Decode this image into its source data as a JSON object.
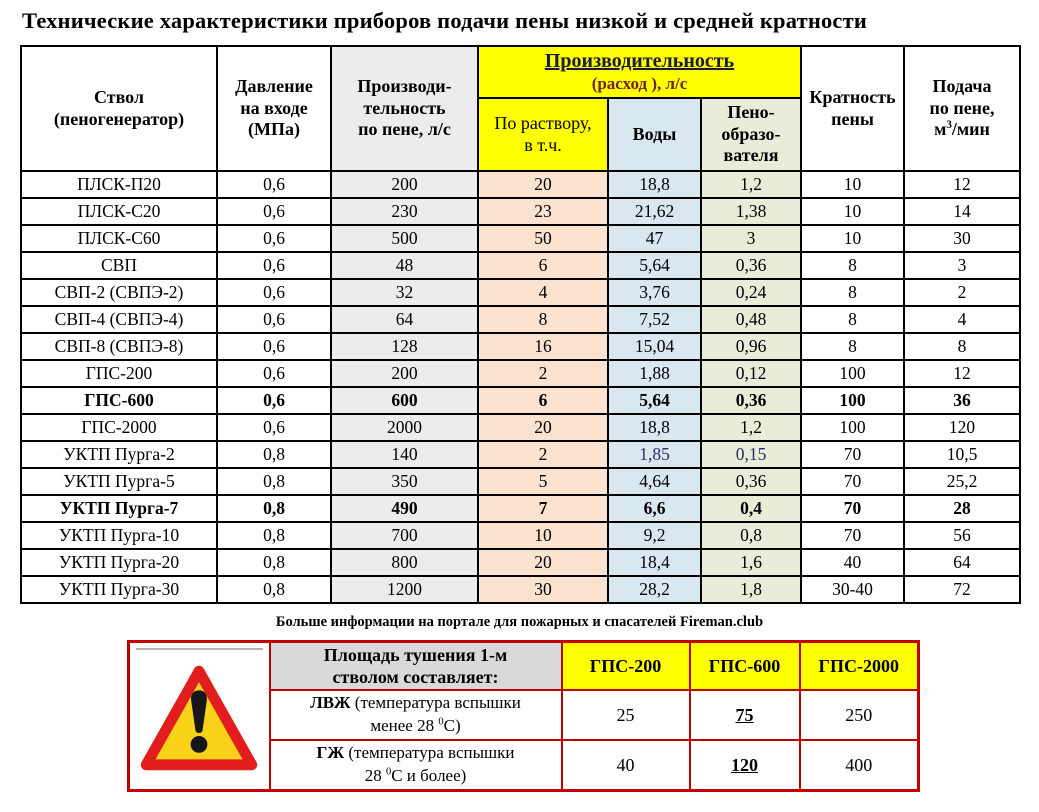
{
  "colors": {
    "yellow": "#ffff00",
    "gray_col": "#ececec",
    "peach_col": "#fbe3d0",
    "blue_col": "#d9e7f1",
    "green_col": "#e8edd9",
    "header_gray": "#d9d9d9",
    "red_border": "#c00000",
    "navy_text": "#2d2d66",
    "navy_title": "#181d3f",
    "dark_red_text": "#6f221b",
    "triangle_yellow": "#f7d219",
    "triangle_red": "#e11d1d"
  },
  "title": "Технические характеристики приборов подачи пены низкой и средней кратности",
  "main_table": {
    "header": {
      "stvol": {
        "line1": "Ствол",
        "line2": "(пеногенератор)"
      },
      "pressure": {
        "line1": "Давление",
        "line2": "на входе",
        "line3": "(МПа)"
      },
      "foam_capacity": {
        "line1": "Производи-",
        "line2": "тельность",
        "line3": "по пене, л/с"
      },
      "performance_group": {
        "title": "Производительность",
        "subtitle": "(расход ), л/с"
      },
      "solution": {
        "line1": "По раствору,",
        "line2": "в т.ч."
      },
      "water": "Воды",
      "foaming_agent": {
        "line1": "Пено-",
        "line2": "образо-",
        "line3": "вателя"
      },
      "ratio": {
        "line1": "Кратность",
        "line2": "пены"
      },
      "supply": {
        "line1": "Подача",
        "line2": "по пене,",
        "line3_base": "м",
        "line3_sup": "3",
        "line3_rest": "/мин"
      }
    },
    "rows": [
      {
        "name": "ПЛСК-П20",
        "pressure": "0,6",
        "foam_capacity": "200",
        "solution": "20",
        "water": "18,8",
        "foaming_agent": "1,2",
        "ratio": "10",
        "supply": "12"
      },
      {
        "name": "ПЛСК-С20",
        "pressure": "0,6",
        "foam_capacity": "230",
        "solution": "23",
        "water": "21,62",
        "foaming_agent": "1,38",
        "ratio": "10",
        "supply": "14"
      },
      {
        "name": "ПЛСК-С60",
        "pressure": "0,6",
        "foam_capacity": "500",
        "solution": "50",
        "water": "47",
        "foaming_agent": "3",
        "ratio": "10",
        "supply": "30"
      },
      {
        "name": "СВП",
        "pressure": "0,6",
        "foam_capacity": "48",
        "solution": "6",
        "water": "5,64",
        "foaming_agent": "0,36",
        "ratio": "8",
        "supply": "3"
      },
      {
        "name": "СВП-2 (СВПЭ-2)",
        "pressure": "0,6",
        "foam_capacity": "32",
        "solution": "4",
        "water": "3,76",
        "foaming_agent": "0,24",
        "ratio": "8",
        "supply": "2"
      },
      {
        "name": "СВП-4 (СВПЭ-4)",
        "pressure": "0,6",
        "foam_capacity": "64",
        "solution": "8",
        "water": "7,52",
        "foaming_agent": "0,48",
        "ratio": "8",
        "supply": "4"
      },
      {
        "name": "СВП-8 (СВПЭ-8)",
        "pressure": "0,6",
        "foam_capacity": "128",
        "solution": "16",
        "water": "15,04",
        "foaming_agent": "0,96",
        "ratio": "8",
        "supply": "8"
      },
      {
        "name": "ГПС-200",
        "pressure": "0,6",
        "foam_capacity": "200",
        "solution": "2",
        "water": "1,88",
        "foaming_agent": "0,12",
        "ratio": "100",
        "supply": "12"
      },
      {
        "name": "ГПС-600",
        "bold": true,
        "pressure": "0,6",
        "foam_capacity": "600",
        "solution": "6",
        "water": "5,64",
        "foaming_agent": "0,36",
        "ratio": "100",
        "supply": "36"
      },
      {
        "name": "ГПС-2000",
        "pressure": "0,6",
        "foam_capacity": "2000",
        "solution": "20",
        "water": "18,8",
        "foaming_agent": "1,2",
        "ratio": "100",
        "supply": "120"
      },
      {
        "name": "УКТП Пурга-2",
        "pressure": "0,8",
        "foam_capacity": "140",
        "solution": "2",
        "water": "1,85",
        "foaming_agent": "0,15",
        "ratio": "70",
        "supply": "10,5",
        "accent": [
          "water",
          "foaming_agent"
        ]
      },
      {
        "name": "УКТП Пурга-5",
        "pressure": "0,8",
        "foam_capacity": "350",
        "solution": "5",
        "water": "4,64",
        "foaming_agent": "0,36",
        "ratio": "70",
        "supply": "25,2"
      },
      {
        "name": "УКТП Пурга-7",
        "bold": true,
        "pressure": "0,8",
        "foam_capacity": "490",
        "solution": "7",
        "water": "6,6",
        "foaming_agent": "0,4",
        "ratio": "70",
        "supply": "28"
      },
      {
        "name": "УКТП Пурга-10",
        "pressure": "0,8",
        "foam_capacity": "700",
        "solution": "10",
        "water": "9,2",
        "foaming_agent": "0,8",
        "ratio": "70",
        "supply": "56"
      },
      {
        "name": "УКТП Пурга-20",
        "pressure": "0,8",
        "foam_capacity": "800",
        "solution": "20",
        "water": "18,4",
        "foaming_agent": "1,6",
        "ratio": "40",
        "supply": "64"
      },
      {
        "name": "УКТП Пурга-30",
        "pressure": "0,8",
        "foam_capacity": "1200",
        "solution": "30",
        "water": "28,2",
        "foaming_agent": "1,8",
        "ratio": "30-40",
        "supply": "72"
      }
    ]
  },
  "footer_note": "Больше информации на портале для пожарных и спасателей Fireman.club",
  "bottom_table": {
    "header": {
      "label_line1": "Площадь тушения 1-м",
      "label_line2": "стволом составляет:",
      "columns": [
        "ГПС-200",
        "ГПС-600",
        "ГПС-2000"
      ]
    },
    "rows": [
      {
        "term": "ЛВЖ",
        "after_term": " (температура вспышки",
        "line2_pre": "менее 28 ",
        "sup": "0",
        "line2_post": "С)",
        "values": [
          "25",
          "75",
          "250"
        ]
      },
      {
        "term": "ГЖ",
        "after_term": " (температура вспышки",
        "line2_pre": "28 ",
        "sup": "0",
        "line2_post": "С и более)",
        "values": [
          "40",
          "120",
          "400"
        ]
      }
    ]
  }
}
